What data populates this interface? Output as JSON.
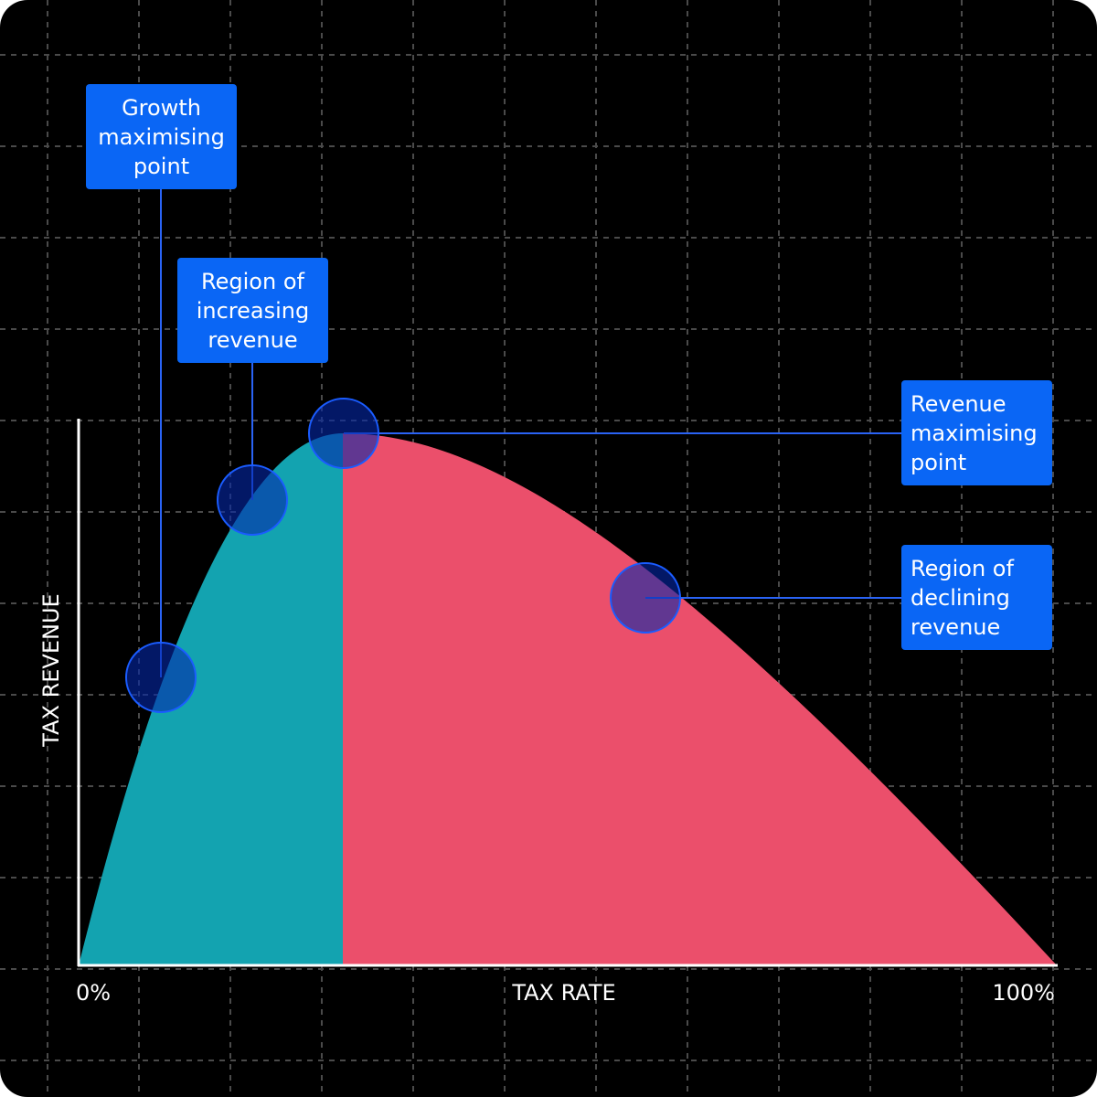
{
  "axes": {
    "x_label": "TAX RATE",
    "y_label": "TAX REVENUE",
    "x_start": "0%",
    "x_end": "100%"
  },
  "annotations": [
    {
      "label": "Growth maximising point"
    },
    {
      "label": "Region of increasing revenue"
    },
    {
      "label": "Revenue maximising point"
    },
    {
      "label": "Region of declining revenue"
    }
  ]
}
